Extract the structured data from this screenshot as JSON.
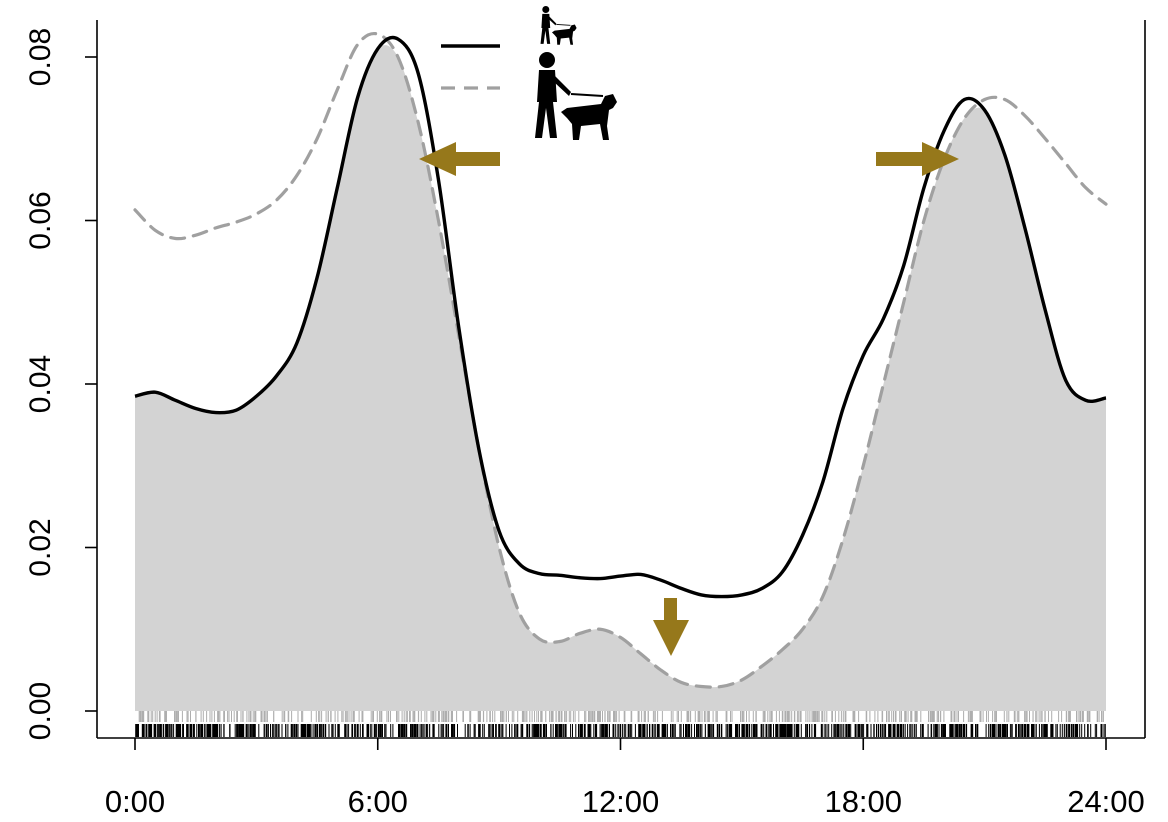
{
  "chart_data": {
    "type": "area",
    "title": "",
    "xlabel": "",
    "ylabel": "",
    "xlim": [
      0,
      24
    ],
    "ylim": [
      0,
      0.08
    ],
    "x_ticks": [
      0,
      6,
      12,
      18,
      24
    ],
    "x_tick_labels": [
      "0:00",
      "6:00",
      "12:00",
      "18:00",
      "24:00"
    ],
    "y_ticks": [
      0,
      0.02,
      0.04,
      0.06,
      0.08
    ],
    "y_tick_labels": [
      "0.00",
      "0.02",
      "0.04",
      "0.06",
      "0.08"
    ],
    "grid": false,
    "legend": {
      "placement": "top-center",
      "entries": [
        {
          "line_style": "solid",
          "color": "#000000",
          "icon": "person-walking-small-dog-icon"
        },
        {
          "line_style": "dashed",
          "color": "#a0a0a0",
          "icon": "person-walking-large-dog-icon"
        }
      ]
    },
    "overlap_fill_color": "#d3d3d3",
    "series": [
      {
        "line_style": "solid",
        "color": "#000000",
        "x": [
          0,
          0.5,
          1,
          1.5,
          2,
          2.5,
          3,
          3.5,
          4,
          4.5,
          5,
          5.5,
          6,
          6.5,
          7,
          7.5,
          8,
          8.5,
          9,
          9.5,
          10,
          10.5,
          11,
          11.5,
          12,
          12.5,
          13,
          13.5,
          14,
          14.5,
          15,
          15.5,
          16,
          16.5,
          17,
          17.5,
          18,
          18.5,
          19,
          19.5,
          20,
          20.5,
          21,
          21.5,
          22,
          22.5,
          23,
          23.5,
          24
        ],
        "y": [
          0.0385,
          0.039,
          0.038,
          0.037,
          0.0365,
          0.0368,
          0.0385,
          0.041,
          0.045,
          0.053,
          0.064,
          0.075,
          0.081,
          0.0822,
          0.078,
          0.065,
          0.047,
          0.032,
          0.022,
          0.018,
          0.0168,
          0.0166,
          0.0163,
          0.0162,
          0.0165,
          0.0167,
          0.016,
          0.015,
          0.0142,
          0.014,
          0.0142,
          0.015,
          0.017,
          0.0215,
          0.028,
          0.037,
          0.0435,
          0.048,
          0.0545,
          0.064,
          0.071,
          0.0748,
          0.0735,
          0.068,
          0.059,
          0.049,
          0.0405,
          0.038,
          0.0383
        ]
      },
      {
        "line_style": "dashed",
        "color": "#a0a0a0",
        "x": [
          0,
          0.5,
          1,
          1.5,
          2,
          2.5,
          3,
          3.5,
          4,
          4.5,
          5,
          5.5,
          6,
          6.5,
          7,
          7.5,
          8,
          8.5,
          9,
          9.5,
          10,
          10.5,
          11,
          11.5,
          12,
          12.5,
          13,
          13.5,
          14,
          14.5,
          15,
          15.5,
          16,
          16.5,
          17,
          17.5,
          18,
          18.5,
          19,
          19.5,
          20,
          20.5,
          21,
          21.5,
          22,
          22.5,
          23,
          23.5,
          24
        ],
        "y": [
          0.0613,
          0.0588,
          0.0578,
          0.0582,
          0.0591,
          0.0598,
          0.0608,
          0.0625,
          0.0655,
          0.07,
          0.076,
          0.0815,
          0.0828,
          0.08,
          0.072,
          0.06,
          0.046,
          0.032,
          0.02,
          0.012,
          0.0088,
          0.0085,
          0.0095,
          0.01,
          0.009,
          0.007,
          0.005,
          0.0035,
          0.003,
          0.003,
          0.0038,
          0.0055,
          0.0075,
          0.01,
          0.014,
          0.021,
          0.03,
          0.04,
          0.05,
          0.06,
          0.0675,
          0.0725,
          0.0748,
          0.0748,
          0.0728,
          0.07,
          0.067,
          0.064,
          0.062
        ]
      }
    ],
    "annotations": [
      {
        "type": "arrow",
        "direction": "left",
        "color": "#96781b",
        "note": "morning peak earlier"
      },
      {
        "type": "arrow",
        "direction": "down",
        "color": "#96781b",
        "note": "midday dip lower"
      },
      {
        "type": "arrow",
        "direction": "right",
        "color": "#96781b",
        "note": "evening peak later"
      }
    ],
    "rug": [
      {
        "row": "upper",
        "color": "#a0a0a0"
      },
      {
        "row": "lower",
        "color": "#000000"
      }
    ]
  }
}
